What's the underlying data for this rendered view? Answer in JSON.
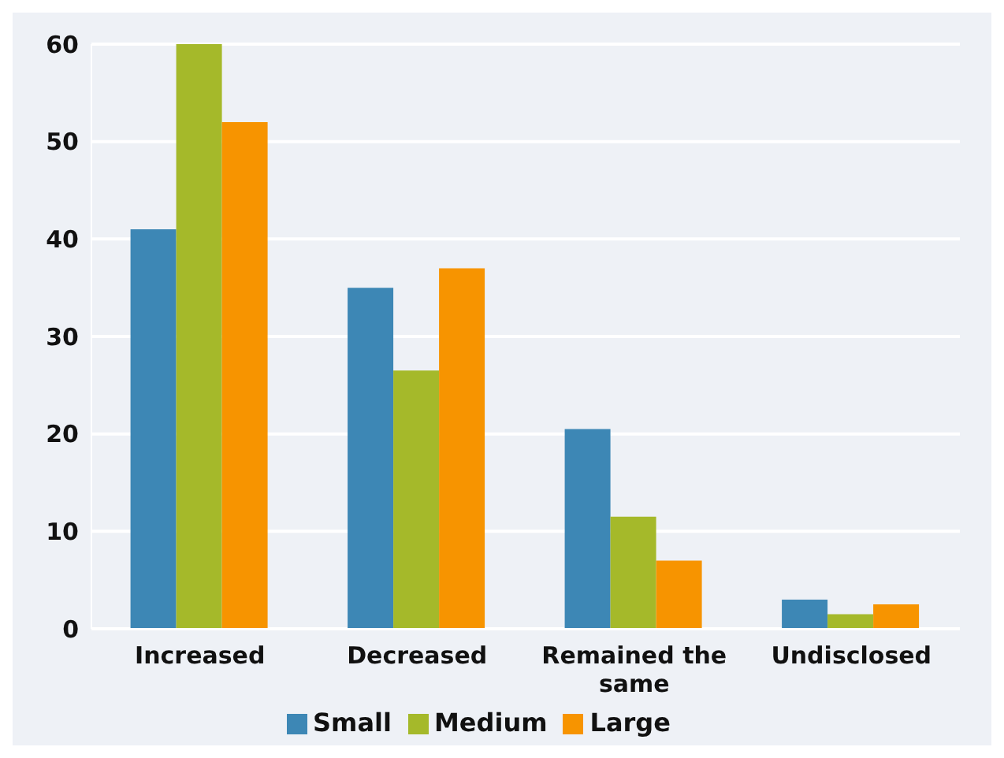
{
  "chart_data": {
    "type": "bar",
    "categories": [
      "Increased",
      "Decreased",
      "Remained the same",
      "Undisclosed"
    ],
    "series": [
      {
        "name": "Small",
        "color": "#3d87b5",
        "values": [
          41,
          35,
          20.5,
          3
        ]
      },
      {
        "name": "Medium",
        "color": "#a5b92a",
        "values": [
          60,
          26.5,
          11.5,
          1.5
        ]
      },
      {
        "name": "Large",
        "color": "#f79400",
        "values": [
          52,
          37,
          7,
          2.5
        ]
      }
    ],
    "ylim": [
      0,
      60
    ],
    "yticks": [
      0,
      10,
      20,
      30,
      40,
      50,
      60
    ],
    "grid": "y",
    "legend": "bottom"
  }
}
